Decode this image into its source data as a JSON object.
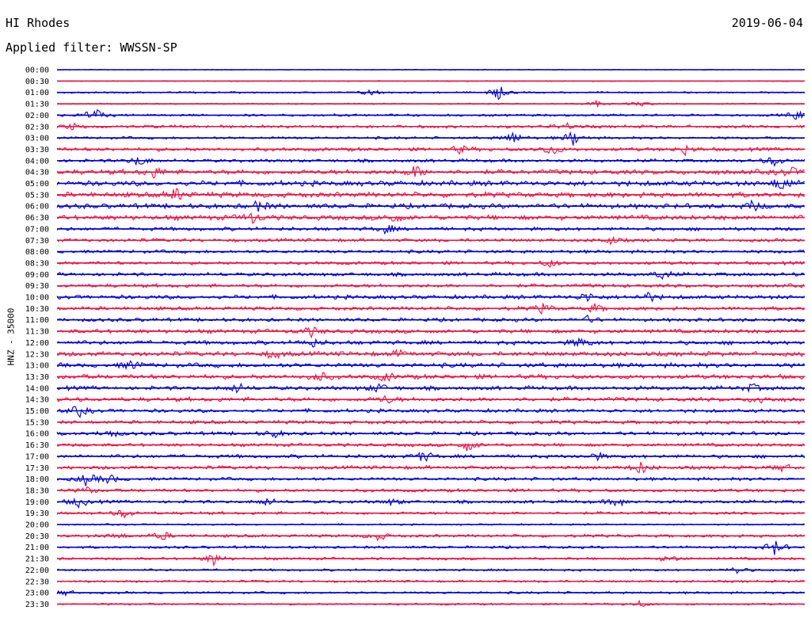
{
  "header": {
    "station": "HI Rhodes",
    "date": "2019-06-04",
    "filter": "Applied filter: WWSSN-SP"
  },
  "chart_data": {
    "type": "line",
    "title": "HI Rhodes",
    "subtitle": "Applied filter: WWSSN-SP",
    "ylabel": "HNZ - 35000",
    "xlabel": "",
    "legend": "none",
    "grid": false,
    "colors": {
      "even_hour": "#0000dd",
      "half_hour": "#ee1144"
    },
    "row_labels": [
      "00:00",
      "00:30",
      "01:00",
      "01:30",
      "02:00",
      "02:30",
      "03:00",
      "03:30",
      "04:00",
      "04:30",
      "05:00",
      "05:30",
      "06:00",
      "06:30",
      "07:00",
      "07:30",
      "08:00",
      "08:30",
      "09:00",
      "09:30",
      "10:00",
      "10:30",
      "11:00",
      "11:30",
      "12:00",
      "12:30",
      "13:00",
      "13:30",
      "14:00",
      "14:30",
      "15:00",
      "15:30",
      "16:00",
      "16:30",
      "17:00",
      "17:30",
      "18:00",
      "18:30",
      "19:00",
      "19:30",
      "20:00",
      "20:30",
      "21:00",
      "21:30",
      "22:00",
      "22:30",
      "23:00",
      "23:30"
    ],
    "noise_level": [
      0.5,
      0.6,
      1.0,
      0.8,
      1.5,
      1.8,
      1.6,
      2.2,
      2.0,
      3.0,
      3.2,
      3.2,
      3.0,
      3.0,
      2.2,
      2.0,
      2.0,
      2.0,
      2.2,
      2.2,
      2.5,
      2.2,
      2.2,
      2.5,
      2.5,
      2.8,
      2.8,
      2.8,
      2.5,
      2.6,
      2.2,
      2.2,
      2.2,
      2.0,
      2.2,
      2.2,
      2.0,
      2.0,
      2.0,
      1.8,
      1.0,
      1.8,
      1.6,
      1.6,
      1.4,
      1.4,
      1.4,
      1.2
    ],
    "events": [
      {
        "row": 2,
        "t": 0.42,
        "amp": 5
      },
      {
        "row": 2,
        "t": 0.59,
        "amp": 10
      },
      {
        "row": 3,
        "t": 0.72,
        "amp": 4
      },
      {
        "row": 3,
        "t": 0.78,
        "amp": 4
      },
      {
        "row": 4,
        "t": 0.05,
        "amp": 10
      },
      {
        "row": 4,
        "t": 0.99,
        "amp": 6
      },
      {
        "row": 5,
        "t": 0.02,
        "amp": 4
      },
      {
        "row": 5,
        "t": 0.68,
        "amp": 5
      },
      {
        "row": 6,
        "t": 0.61,
        "amp": 8
      },
      {
        "row": 6,
        "t": 0.69,
        "amp": 10
      },
      {
        "row": 7,
        "t": 0.54,
        "amp": 5
      },
      {
        "row": 7,
        "t": 0.66,
        "amp": 8
      },
      {
        "row": 7,
        "t": 0.84,
        "amp": 6
      },
      {
        "row": 8,
        "t": 0.11,
        "amp": 7
      },
      {
        "row": 8,
        "t": 0.96,
        "amp": 7
      },
      {
        "row": 9,
        "t": 0.13,
        "amp": 7
      },
      {
        "row": 9,
        "t": 0.48,
        "amp": 8
      },
      {
        "row": 9,
        "t": 0.98,
        "amp": 6
      },
      {
        "row": 10,
        "t": 0.97,
        "amp": 10
      },
      {
        "row": 11,
        "t": 0.16,
        "amp": 8
      },
      {
        "row": 12,
        "t": 0.27,
        "amp": 6
      },
      {
        "row": 12,
        "t": 0.93,
        "amp": 6
      },
      {
        "row": 13,
        "t": 0.26,
        "amp": 7
      },
      {
        "row": 13,
        "t": 0.45,
        "amp": 6
      },
      {
        "row": 14,
        "t": 0.44,
        "amp": 6
      },
      {
        "row": 15,
        "t": 0.74,
        "amp": 5
      },
      {
        "row": 17,
        "t": 0.66,
        "amp": 5
      },
      {
        "row": 18,
        "t": 0.81,
        "amp": 6
      },
      {
        "row": 20,
        "t": 0.71,
        "amp": 6
      },
      {
        "row": 20,
        "t": 0.79,
        "amp": 6
      },
      {
        "row": 21,
        "t": 0.65,
        "amp": 6
      },
      {
        "row": 21,
        "t": 0.72,
        "amp": 5
      },
      {
        "row": 22,
        "t": 0.71,
        "amp": 4
      },
      {
        "row": 23,
        "t": 0.34,
        "amp": 6
      },
      {
        "row": 24,
        "t": 0.34,
        "amp": 6
      },
      {
        "row": 24,
        "t": 0.7,
        "amp": 6
      },
      {
        "row": 25,
        "t": 0.29,
        "amp": 5
      },
      {
        "row": 25,
        "t": 0.46,
        "amp": 4
      },
      {
        "row": 26,
        "t": 0.1,
        "amp": 6
      },
      {
        "row": 27,
        "t": 0.35,
        "amp": 7
      },
      {
        "row": 27,
        "t": 0.44,
        "amp": 5
      },
      {
        "row": 28,
        "t": 0.24,
        "amp": 6
      },
      {
        "row": 28,
        "t": 0.43,
        "amp": 6
      },
      {
        "row": 28,
        "t": 0.93,
        "amp": 5
      },
      {
        "row": 29,
        "t": 0.44,
        "amp": 5
      },
      {
        "row": 29,
        "t": 0.94,
        "amp": 5
      },
      {
        "row": 30,
        "t": 0.03,
        "amp": 7
      },
      {
        "row": 32,
        "t": 0.07,
        "amp": 5
      },
      {
        "row": 32,
        "t": 0.29,
        "amp": 5
      },
      {
        "row": 33,
        "t": 0.55,
        "amp": 8
      },
      {
        "row": 34,
        "t": 0.49,
        "amp": 7
      },
      {
        "row": 34,
        "t": 0.72,
        "amp": 5
      },
      {
        "row": 35,
        "t": 0.78,
        "amp": 8
      },
      {
        "row": 35,
        "t": 0.97,
        "amp": 5
      },
      {
        "row": 36,
        "t": 0.04,
        "amp": 8
      },
      {
        "row": 36,
        "t": 0.07,
        "amp": 6
      },
      {
        "row": 37,
        "t": 0.04,
        "amp": 4
      },
      {
        "row": 38,
        "t": 0.03,
        "amp": 7
      },
      {
        "row": 38,
        "t": 0.28,
        "amp": 5
      },
      {
        "row": 38,
        "t": 0.45,
        "amp": 4
      },
      {
        "row": 38,
        "t": 0.75,
        "amp": 6
      },
      {
        "row": 39,
        "t": 0.09,
        "amp": 6
      },
      {
        "row": 41,
        "t": 0.08,
        "amp": 4
      },
      {
        "row": 41,
        "t": 0.14,
        "amp": 6
      },
      {
        "row": 41,
        "t": 0.43,
        "amp": 6
      },
      {
        "row": 42,
        "t": 0.96,
        "amp": 10
      },
      {
        "row": 43,
        "t": 0.21,
        "amp": 9
      },
      {
        "row": 43,
        "t": 0.82,
        "amp": 5
      },
      {
        "row": 44,
        "t": 0.91,
        "amp": 5
      },
      {
        "row": 46,
        "t": 0.01,
        "amp": 4
      },
      {
        "row": 47,
        "t": 0.78,
        "amp": 4
      }
    ]
  }
}
